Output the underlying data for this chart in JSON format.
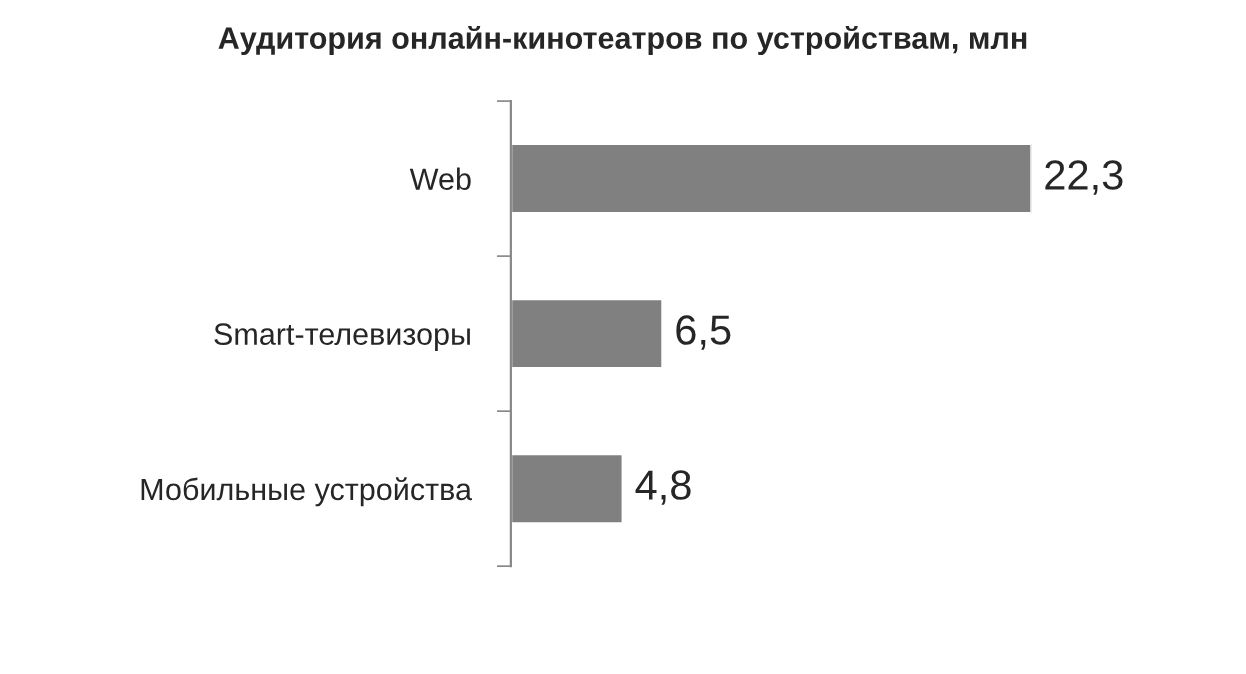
{
  "chart_data": {
    "type": "bar",
    "orientation": "horizontal",
    "title": "Аудитория онлайн-кинотеатров по устройствам, млн",
    "categories": [
      "Web",
      "Smart-телевизоры",
      "Мобильные устройства"
    ],
    "values": [
      22.3,
      6.5,
      4.8
    ],
    "value_labels": [
      "22,3",
      "6,5",
      "4,8"
    ],
    "color": "#808080",
    "grid": false,
    "legend": false
  }
}
